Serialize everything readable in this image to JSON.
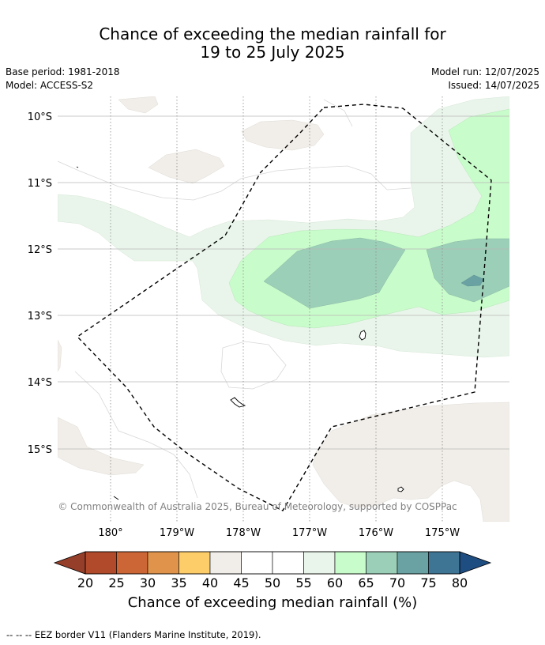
{
  "title": {
    "line1": "Chance of exceeding the median rainfall for",
    "line2": "19 to 25 July 2025"
  },
  "meta": {
    "base_period": "Base period: 1981-2018",
    "model": "Model: ACCESS-S2",
    "model_run": "Model run: 12/07/2025",
    "issued": "Issued: 14/07/2025"
  },
  "map": {
    "lat_labels": [
      "10°S",
      "11°S",
      "12°S",
      "13°S",
      "14°S",
      "15°S"
    ],
    "lon_labels": [
      "180°",
      "179°W",
      "178°W",
      "177°W",
      "176°W",
      "175°W"
    ],
    "copyright": "© Commonwealth of Australia 2025, Bureau of Meteorology, supported by COSPPac"
  },
  "colorbar": {
    "ticks": [
      "20",
      "25",
      "30",
      "35",
      "40",
      "45",
      "50",
      "55",
      "60",
      "65",
      "70",
      "75",
      "80"
    ],
    "colors": [
      "#b14a2a",
      "#cc6637",
      "#e0944b",
      "#fdcd6a",
      "#f1ede8",
      "#ffffff",
      "#ffffff",
      "#e9f5ea",
      "#c9fccb",
      "#9ccfb8",
      "#6aa2a3",
      "#3e7595"
    ],
    "under_color": "#953e29",
    "over_color": "#1e4d82",
    "label": "Chance of exceeding median rainfall (%)"
  },
  "footnote": "--  --  -- EEZ border V11 (Flanders Marine Institute, 2019)."
}
